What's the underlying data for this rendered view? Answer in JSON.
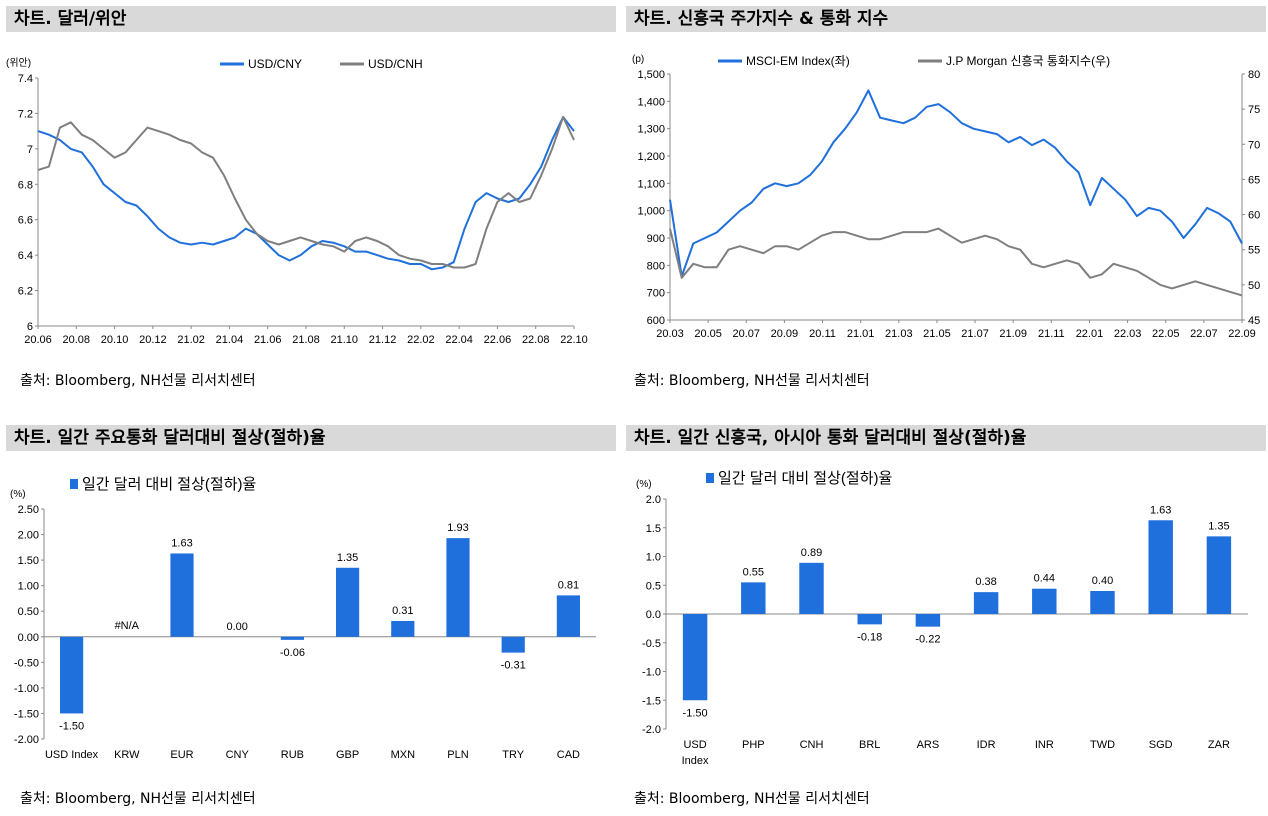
{
  "panels": [
    {
      "title": "차트. 달러/위안",
      "source": "출처: Bloomberg, NH선물 리서치센터"
    },
    {
      "title": "차트. 신흥국 주가지수 & 통화 지수",
      "source": "출처: Bloomberg, NH선물 리서치센터"
    },
    {
      "title": "차트. 일간 주요통화 달러대비 절상(절하)율",
      "source": "출처: Bloomberg, NH선물 리서치센터"
    },
    {
      "title": "차트. 일간 신흥국, 아시아 통화 달러대비 절상(절하)율",
      "source": "출처: Bloomberg, NH선물 리서치센터"
    }
  ],
  "chart_data": [
    {
      "type": "line",
      "unit": "(위안)",
      "ylim": [
        6,
        7.4
      ],
      "yticks": [
        "6",
        "6.2",
        "6.4",
        "6.6",
        "6.8",
        "7",
        "7.2",
        "7.4"
      ],
      "xticks": [
        "20.06",
        "20.08",
        "20.10",
        "20.12",
        "21.02",
        "21.04",
        "21.06",
        "21.08",
        "21.10",
        "21.12",
        "22.02",
        "22.04",
        "22.06",
        "22.08",
        "22.10"
      ],
      "legend_position": "top",
      "grid": false,
      "series": [
        {
          "name": "USD/CNY",
          "color": "#1f6fdc",
          "values": [
            7.1,
            7.08,
            7.05,
            7.0,
            6.98,
            6.9,
            6.8,
            6.75,
            6.7,
            6.68,
            6.62,
            6.55,
            6.5,
            6.47,
            6.46,
            6.47,
            6.46,
            6.48,
            6.5,
            6.55,
            6.52,
            6.46,
            6.4,
            6.37,
            6.4,
            6.45,
            6.48,
            6.47,
            6.45,
            6.42,
            6.42,
            6.4,
            6.38,
            6.37,
            6.35,
            6.35,
            6.32,
            6.33,
            6.36,
            6.55,
            6.7,
            6.75,
            6.72,
            6.7,
            6.72,
            6.8,
            6.9,
            7.05,
            7.18,
            7.1
          ]
        },
        {
          "name": "USD/CNH",
          "color": "#7f7f7f",
          "values": [
            6.88,
            6.9,
            7.12,
            7.15,
            7.08,
            7.05,
            7.0,
            6.95,
            6.98,
            7.05,
            7.12,
            7.1,
            7.08,
            7.05,
            7.03,
            6.98,
            6.95,
            6.85,
            6.72,
            6.6,
            6.52,
            6.48,
            6.46,
            6.48,
            6.5,
            6.48,
            6.46,
            6.45,
            6.42,
            6.48,
            6.5,
            6.48,
            6.45,
            6.4,
            6.38,
            6.37,
            6.35,
            6.35,
            6.33,
            6.33,
            6.35,
            6.55,
            6.7,
            6.75,
            6.7,
            6.72,
            6.85,
            7.0,
            7.18,
            7.05
          ]
        }
      ]
    },
    {
      "type": "line",
      "unit": "(p)",
      "ylim": [
        600,
        1500
      ],
      "ylim_right": [
        45,
        80
      ],
      "yticks": [
        "600",
        "700",
        "800",
        "900",
        "1,000",
        "1,100",
        "1,200",
        "1,300",
        "1,400",
        "1,500"
      ],
      "yticks_right": [
        "45",
        "50",
        "55",
        "60",
        "65",
        "70",
        "75",
        "80"
      ],
      "xticks": [
        "20.03",
        "20.05",
        "20.07",
        "20.09",
        "20.11",
        "21.01",
        "21.03",
        "21.05",
        "21.07",
        "21.09",
        "21.11",
        "22.01",
        "22.03",
        "22.05",
        "22.07",
        "22.09"
      ],
      "legend_position": "top",
      "grid": false,
      "series": [
        {
          "name": "MSCI-EM Index(좌)",
          "axis": "left",
          "color": "#1f6fdc",
          "values": [
            1040,
            760,
            880,
            900,
            920,
            960,
            1000,
            1030,
            1080,
            1100,
            1090,
            1100,
            1130,
            1180,
            1250,
            1300,
            1360,
            1440,
            1340,
            1330,
            1320,
            1340,
            1380,
            1390,
            1360,
            1320,
            1300,
            1290,
            1280,
            1250,
            1270,
            1240,
            1260,
            1230,
            1180,
            1140,
            1020,
            1120,
            1080,
            1040,
            980,
            1010,
            1000,
            960,
            900,
            950,
            1010,
            990,
            960,
            880
          ]
        },
        {
          "name": "J.P Morgan 신흥국 통화지수(우)",
          "axis": "right",
          "color": "#7f7f7f",
          "values": [
            58,
            51,
            53,
            52.5,
            52.5,
            55,
            55.5,
            55,
            54.5,
            55.5,
            55.5,
            55,
            56,
            57,
            57.5,
            57.5,
            57,
            56.5,
            56.5,
            57,
            57.5,
            57.5,
            57.5,
            58,
            57,
            56,
            56.5,
            57,
            56.5,
            55.5,
            55,
            53,
            52.5,
            53,
            53.5,
            53,
            51,
            51.5,
            53,
            52.5,
            52,
            51,
            50,
            49.5,
            50,
            50.5,
            50,
            49.5,
            49,
            48.5
          ]
        }
      ]
    },
    {
      "type": "bar",
      "unit": "(%)",
      "series_name": "일간 달러 대비 절상(절하)율",
      "color": "#1f6fdc",
      "ylim": [
        -2.0,
        2.5
      ],
      "yticks": [
        "-2.00",
        "-1.50",
        "-1.00",
        "-0.50",
        "0.00",
        "0.50",
        "1.00",
        "1.50",
        "2.00",
        "2.50"
      ],
      "legend_position": "top",
      "grid": false,
      "categories": [
        "USD Index",
        "KRW",
        "EUR",
        "CNY",
        "RUB",
        "GBP",
        "MXN",
        "PLN",
        "TRY",
        "CAD"
      ],
      "values": [
        -1.5,
        null,
        1.63,
        0.0,
        -0.06,
        1.35,
        0.31,
        1.93,
        -0.31,
        0.81
      ],
      "labels": [
        "-1.50",
        "#N/A",
        "1.63",
        "0.00",
        "-0.06",
        "1.35",
        "0.31",
        "1.93",
        "-0.31",
        "0.81"
      ]
    },
    {
      "type": "bar",
      "unit": "(%)",
      "series_name": "일간 달러 대비 절상(절하)율",
      "color": "#1f6fdc",
      "ylim": [
        -2.0,
        2.0
      ],
      "yticks": [
        "-2.0",
        "-1.5",
        "-1.0",
        "-0.5",
        "0.0",
        "0.5",
        "1.0",
        "1.5",
        "2.0"
      ],
      "legend_position": "top",
      "grid": false,
      "categories": [
        "USD Index",
        "PHP",
        "CNH",
        "BRL",
        "ARS",
        "IDR",
        "INR",
        "TWD",
        "SGD",
        "ZAR"
      ],
      "values": [
        -1.5,
        0.55,
        0.89,
        -0.18,
        -0.22,
        0.38,
        0.44,
        0.4,
        1.63,
        1.35
      ],
      "labels": [
        "-1.50",
        "0.55",
        "0.89",
        "-0.18",
        "-0.22",
        "0.38",
        "0.44",
        "0.40",
        "1.63",
        "1.35"
      ]
    }
  ]
}
